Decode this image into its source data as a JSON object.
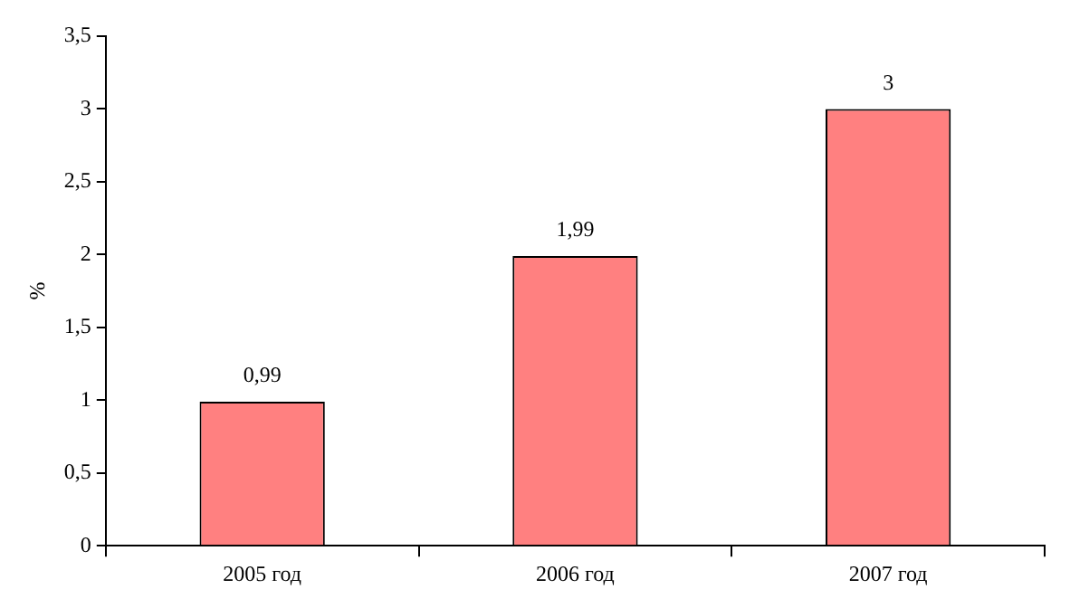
{
  "chart_data": {
    "type": "bar",
    "ylabel": "%",
    "categories": [
      "2005 год",
      "2006 год",
      "2007 год"
    ],
    "values": [
      0.99,
      1.99,
      3
    ],
    "color": "#ff8080",
    "value_labels": [
      "0,99",
      "1,99",
      "3"
    ],
    "ylim": [
      0,
      3.5
    ],
    "yticks": [
      0,
      {
        "value": 0.5,
        "label": "0,5"
      },
      1,
      {
        "value": 1.5,
        "label": "1,5"
      },
      2,
      {
        "value": 2.5,
        "label": "2,5"
      },
      3,
      {
        "value": 3.5,
        "label": "3,5"
      }
    ]
  }
}
